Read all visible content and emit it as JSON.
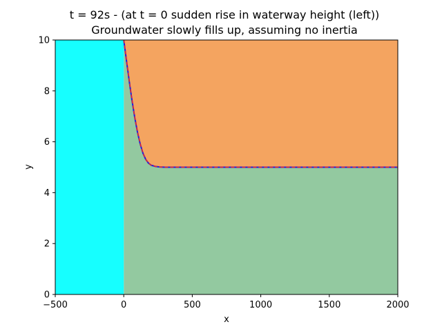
{
  "chart_data": {
    "type": "area",
    "title_lines": [
      "t = 92s - (at t = 0 sudden rise in waterway height (left))",
      "Groundwater slowly fills up, assuming no inertia"
    ],
    "xlabel": "x",
    "ylabel": "y",
    "xlim": [
      -500,
      2000
    ],
    "ylim": [
      0,
      10
    ],
    "x_ticks": [
      -500,
      0,
      500,
      1000,
      1500,
      2000
    ],
    "x_tick_labels": [
      "−500",
      "0",
      "500",
      "1000",
      "1500",
      "2000"
    ],
    "y_ticks": [
      0,
      2,
      4,
      6,
      8,
      10
    ],
    "y_tick_labels": [
      "0",
      "2",
      "4",
      "6",
      "8",
      "10"
    ],
    "grid": false,
    "legend": "none",
    "regions": [
      {
        "name": "waterway",
        "x_range": [
          -500,
          0
        ],
        "y_range": [
          0,
          10
        ],
        "color": "#16FFFF"
      },
      {
        "name": "above groundwater",
        "color": "#F4A460"
      },
      {
        "name": "groundwater",
        "color": "#93C9A0"
      }
    ],
    "series": [
      {
        "line_style": "solid",
        "color": "#1F1FDD",
        "x": [
          0,
          20,
          40,
          60,
          80,
          100,
          120,
          140,
          160,
          180,
          200,
          230,
          260,
          300,
          400,
          600,
          1000,
          1500,
          2000
        ],
        "y": [
          10.0,
          9.18,
          8.38,
          7.63,
          6.96,
          6.38,
          5.91,
          5.55,
          5.31,
          5.16,
          5.08,
          5.03,
          5.01,
          5.0,
          5.0,
          5.0,
          5.0,
          5.0,
          5.0
        ]
      },
      {
        "line_style": "dashed",
        "color": "#E8242C",
        "x": [
          0,
          20,
          40,
          60,
          80,
          100,
          120,
          140,
          160,
          180,
          200,
          230,
          260,
          300,
          400,
          600,
          1000,
          1500,
          2000
        ],
        "y": [
          10.0,
          9.18,
          8.38,
          7.63,
          6.96,
          6.38,
          5.91,
          5.55,
          5.31,
          5.16,
          5.08,
          5.03,
          5.01,
          5.0,
          5.0,
          5.0,
          5.0,
          5.0,
          5.0
        ]
      }
    ]
  }
}
